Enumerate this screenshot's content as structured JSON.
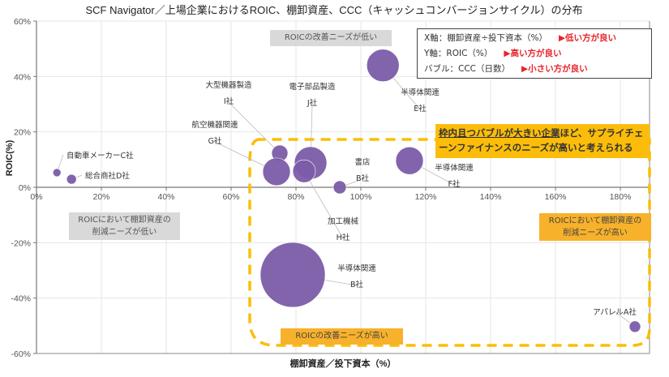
{
  "chart_data": {
    "type": "scatter",
    "subtype": "bubble",
    "title": "SCF Navigator／上場企業におけるROIC、棚卸資産、CCC（キャッシュコンバージョンサイクル）の分布",
    "xlabel": "棚卸資産／投下資本（%）",
    "ylabel": "ROIC(%)",
    "xlim": [
      0,
      189
    ],
    "ylim": [
      -60,
      60
    ],
    "xticks": [
      "0%",
      "20%",
      "40%",
      "60%",
      "80%",
      "100%",
      "120%",
      "140%",
      "160%",
      "180%"
    ],
    "xtick_values": [
      0,
      20,
      40,
      60,
      80,
      100,
      120,
      140,
      160,
      180
    ],
    "yticks": [
      "60%",
      "40%",
      "20%",
      "0%",
      "-20%",
      "-40%",
      "-60%"
    ],
    "ytick_values": [
      60,
      40,
      20,
      0,
      -20,
      -40,
      -60
    ],
    "grid": true,
    "bubble_color": "#7b5ca8",
    "points": [
      {
        "id": "C",
        "label1": "自動車メーカーC社",
        "label2": "",
        "x": 6.3,
        "y": 5.3,
        "size": 5
      },
      {
        "id": "D",
        "label1": "総合商社D社",
        "label2": "",
        "x": 10.8,
        "y": 2.9,
        "size": 6
      },
      {
        "id": "I",
        "label1": "大型機器製造",
        "label2": "I社",
        "x": 75,
        "y": 12.3,
        "size": 10
      },
      {
        "id": "G",
        "label1": "航空機器関連",
        "label2": "G社",
        "x": 74,
        "y": 5.6,
        "size": 17
      },
      {
        "id": "J",
        "label1": "電子部品製造",
        "label2": "J社",
        "x": 84.5,
        "y": 8.8,
        "size": 20
      },
      {
        "id": "H",
        "label1": "加工機械",
        "label2": "H社",
        "x": 82.5,
        "y": 5.8,
        "size": 14
      },
      {
        "id": "B2",
        "label1": "書店",
        "label2": "B社",
        "x": 93.5,
        "y": 0,
        "size": 8
      },
      {
        "id": "E",
        "label1": "半導体関連",
        "label2": "E社",
        "x": 106.8,
        "y": 44,
        "size": 20
      },
      {
        "id": "F",
        "label1": "半導体関連",
        "label2": "F社",
        "x": 115,
        "y": 9.6,
        "size": 17
      },
      {
        "id": "B",
        "label1": "半導体関連",
        "label2": "B社",
        "x": 79,
        "y": -31.6,
        "size": 40
      },
      {
        "id": "A",
        "label1": "アパレルA社",
        "label2": "",
        "x": 184.5,
        "y": -50.3,
        "size": 7
      }
    ]
  },
  "legend": {
    "x_line": "X軸：棚卸資産÷投下資本（%）",
    "x_note": "▶低い方が良い",
    "y_line": "Y軸：ROIC（%）",
    "y_note": "▶高い方が良い",
    "b_line": "バブル：CCC（日数）",
    "b_note": "▶小さい方が良い"
  },
  "annotations": {
    "roic_low_top": "ROICの改善ニーズが低い",
    "roic_high_bottom": "ROICの改善ニーズが高い",
    "inv_low_1": "ROICにおいて棚卸資産の",
    "inv_low_2": "削減ニーズが低い",
    "inv_high_1": "ROICにおいて棚卸資産の",
    "inv_high_2": "削減ニーズが高い",
    "callout_u": "枠内且つバブルが大きい企業",
    "callout_rest": "ほど、サプライチェーンファイナンスのニーズが高いと考えられる"
  },
  "colors": {
    "accent": "#fbbd09",
    "red": "#e8222a",
    "bubble": "#7b5ca8"
  }
}
